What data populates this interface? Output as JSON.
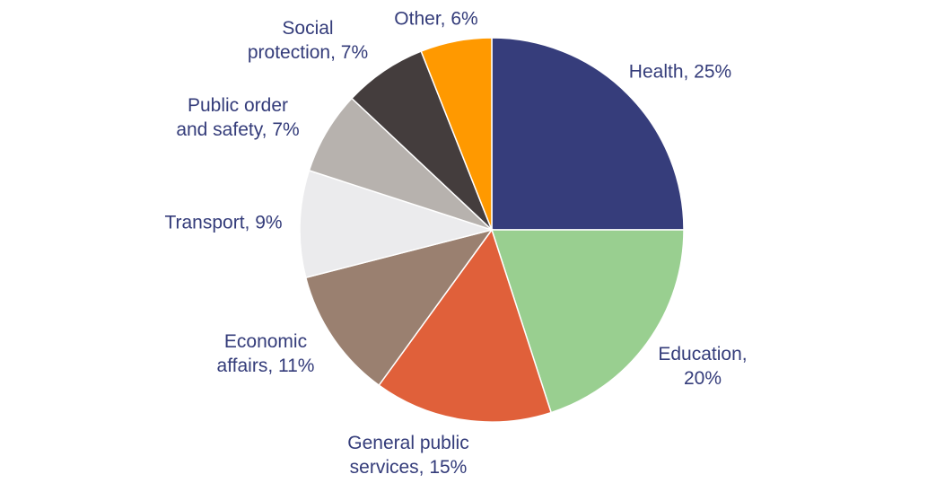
{
  "chart_data": {
    "type": "pie",
    "title": "",
    "slices": [
      {
        "label": "Health",
        "value": 25,
        "color": "#363D7B",
        "label_lines": [
          "Health, 25%"
        ]
      },
      {
        "label": "Education",
        "value": 20,
        "color": "#99CF90",
        "label_lines": [
          "Education,",
          "20%"
        ]
      },
      {
        "label": "General public services",
        "value": 15,
        "color": "#E0603A",
        "label_lines": [
          "General public",
          "services, 15%"
        ]
      },
      {
        "label": "Economic affairs",
        "value": 11,
        "color": "#9A8070",
        "label_lines": [
          "Economic",
          "affairs, 11%"
        ]
      },
      {
        "label": "Transport",
        "value": 9,
        "color": "#EBEBED",
        "label_lines": [
          "Transport, 9%"
        ]
      },
      {
        "label": "Public order and safety",
        "value": 7,
        "color": "#B7B2AE",
        "label_lines": [
          "Public order",
          "and safety, 7%"
        ]
      },
      {
        "label": "Social protection",
        "value": 7,
        "color": "#443D3D",
        "label_lines": [
          "Social",
          "protection, 7%"
        ]
      },
      {
        "label": "Other",
        "value": 6,
        "color": "#FF9900",
        "label_lines": [
          "Other, 6%"
        ]
      }
    ],
    "start_angle": "12 o'clock",
    "direction": "clockwise",
    "label_color": "#343C7A",
    "legend": "none"
  }
}
